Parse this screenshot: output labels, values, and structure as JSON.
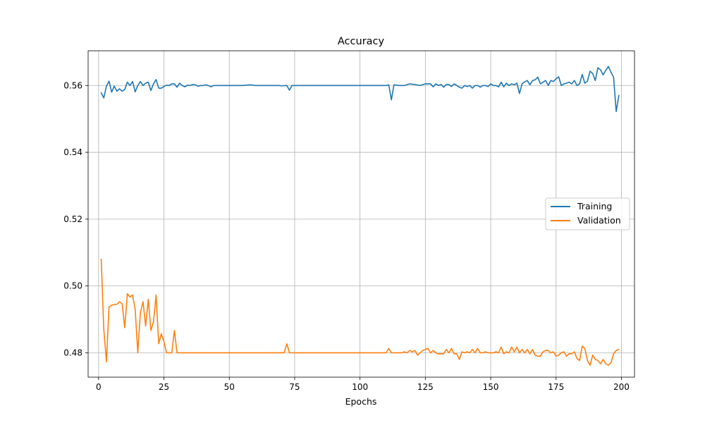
{
  "chart_data": {
    "type": "line",
    "title": "Accuracy",
    "xlabel": "Epochs",
    "ylabel": "",
    "xlim": [
      -4,
      205
    ],
    "ylim": [
      0.4727,
      0.5704
    ],
    "xticks": [
      0,
      25,
      50,
      75,
      100,
      125,
      150,
      175,
      200
    ],
    "yticks": [
      0.48,
      0.5,
      0.52,
      0.54,
      0.56
    ],
    "ytick_labels": [
      "0.48",
      "0.50",
      "0.52",
      "0.54",
      "0.56"
    ],
    "grid": true,
    "legend_position": "center-right",
    "series": [
      {
        "name": "Training",
        "color": "#1f77b4",
        "points": [
          [
            1,
            0.5578
          ],
          [
            2,
            0.5563
          ],
          [
            3,
            0.5598
          ],
          [
            4,
            0.5613
          ],
          [
            5,
            0.558
          ],
          [
            6,
            0.5598
          ],
          [
            7,
            0.5583
          ],
          [
            8,
            0.559
          ],
          [
            9,
            0.5583
          ],
          [
            10,
            0.5588
          ],
          [
            11,
            0.561
          ],
          [
            12,
            0.56
          ],
          [
            13,
            0.5612
          ],
          [
            14,
            0.5581
          ],
          [
            15,
            0.56
          ],
          [
            16,
            0.5612
          ],
          [
            17,
            0.56
          ],
          [
            18,
            0.5607
          ],
          [
            19,
            0.561
          ],
          [
            20,
            0.5585
          ],
          [
            21,
            0.5605
          ],
          [
            22,
            0.5618
          ],
          [
            23,
            0.5592
          ],
          [
            24,
            0.5592
          ],
          [
            25,
            0.5597
          ],
          [
            26,
            0.5601
          ],
          [
            27,
            0.56
          ],
          [
            28,
            0.5605
          ],
          [
            29,
            0.5605
          ],
          [
            30,
            0.5595
          ],
          [
            31,
            0.5607
          ],
          [
            32,
            0.56
          ],
          [
            33,
            0.5596
          ],
          [
            34,
            0.5601
          ],
          [
            35,
            0.56
          ],
          [
            36,
            0.5603
          ],
          [
            37,
            0.5602
          ],
          [
            38,
            0.5598
          ],
          [
            39,
            0.56
          ],
          [
            40,
            0.56
          ],
          [
            41,
            0.5602
          ],
          [
            42,
            0.56
          ],
          [
            43,
            0.5596
          ],
          [
            44,
            0.56
          ],
          [
            45,
            0.56
          ],
          [
            50,
            0.56
          ],
          [
            55,
            0.56
          ],
          [
            58,
            0.5602
          ],
          [
            60,
            0.56
          ],
          [
            65,
            0.56
          ],
          [
            69,
            0.56
          ],
          [
            70,
            0.5599
          ],
          [
            72,
            0.56
          ],
          [
            73,
            0.5586
          ],
          [
            74,
            0.56
          ],
          [
            80,
            0.56
          ],
          [
            90,
            0.56
          ],
          [
            100,
            0.56
          ],
          [
            105,
            0.56
          ],
          [
            110,
            0.56
          ],
          [
            111,
            0.5602
          ],
          [
            112,
            0.5557
          ],
          [
            113,
            0.5602
          ],
          [
            115,
            0.56
          ],
          [
            117,
            0.56
          ],
          [
            119,
            0.5605
          ],
          [
            121,
            0.5603
          ],
          [
            123,
            0.56
          ],
          [
            125,
            0.5605
          ],
          [
            127,
            0.5605
          ],
          [
            128,
            0.5596
          ],
          [
            129,
            0.5605
          ],
          [
            130,
            0.56
          ],
          [
            131,
            0.5603
          ],
          [
            132,
            0.5595
          ],
          [
            133,
            0.5603
          ],
          [
            134,
            0.5603
          ],
          [
            135,
            0.5597
          ],
          [
            136,
            0.5605
          ],
          [
            137,
            0.56
          ],
          [
            138,
            0.5595
          ],
          [
            139,
            0.5592
          ],
          [
            140,
            0.56
          ],
          [
            141,
            0.5597
          ],
          [
            142,
            0.56
          ],
          [
            143,
            0.5592
          ],
          [
            144,
            0.56
          ],
          [
            145,
            0.56
          ],
          [
            146,
            0.5595
          ],
          [
            147,
            0.56
          ],
          [
            148,
            0.56
          ],
          [
            149,
            0.5597
          ],
          [
            150,
            0.5605
          ],
          [
            151,
            0.56
          ],
          [
            152,
            0.56
          ],
          [
            153,
            0.5596
          ],
          [
            154,
            0.561
          ],
          [
            155,
            0.5596
          ],
          [
            156,
            0.5607
          ],
          [
            157,
            0.56
          ],
          [
            158,
            0.5605
          ],
          [
            159,
            0.5602
          ],
          [
            160,
            0.5607
          ],
          [
            161,
            0.5576
          ],
          [
            162,
            0.5605
          ],
          [
            163,
            0.5611
          ],
          [
            164,
            0.5615
          ],
          [
            165,
            0.5602
          ],
          [
            166,
            0.5615
          ],
          [
            167,
            0.5617
          ],
          [
            168,
            0.5625
          ],
          [
            169,
            0.5605
          ],
          [
            170,
            0.561
          ],
          [
            171,
            0.5615
          ],
          [
            172,
            0.56
          ],
          [
            173,
            0.5615
          ],
          [
            174,
            0.5612
          ],
          [
            175,
            0.562
          ],
          [
            176,
            0.5626
          ],
          [
            177,
            0.56
          ],
          [
            178,
            0.5605
          ],
          [
            179,
            0.5607
          ],
          [
            180,
            0.561
          ],
          [
            181,
            0.5605
          ],
          [
            182,
            0.5615
          ],
          [
            183,
            0.56
          ],
          [
            184,
            0.5605
          ],
          [
            185,
            0.5633
          ],
          [
            186,
            0.5607
          ],
          [
            187,
            0.5613
          ],
          [
            188,
            0.5643
          ],
          [
            189,
            0.5636
          ],
          [
            190,
            0.5615
          ],
          [
            191,
            0.5653
          ],
          [
            192,
            0.5647
          ],
          [
            193,
            0.5632
          ],
          [
            194,
            0.5645
          ],
          [
            195,
            0.5657
          ],
          [
            196,
            0.564
          ],
          [
            197,
            0.5625
          ],
          [
            198,
            0.5522
          ],
          [
            199,
            0.557
          ]
        ]
      },
      {
        "name": "Validation",
        "color": "#ff7f0e",
        "points": [
          [
            1,
            0.508
          ],
          [
            2,
            0.487
          ],
          [
            3,
            0.4773
          ],
          [
            4,
            0.4937
          ],
          [
            5,
            0.4942
          ],
          [
            6,
            0.4945
          ],
          [
            7,
            0.4945
          ],
          [
            8,
            0.4953
          ],
          [
            9,
            0.4947
          ],
          [
            10,
            0.4875
          ],
          [
            11,
            0.4977
          ],
          [
            12,
            0.4967
          ],
          [
            13,
            0.4973
          ],
          [
            14,
            0.493
          ],
          [
            15,
            0.48
          ],
          [
            16,
            0.492
          ],
          [
            17,
            0.4953
          ],
          [
            18,
            0.488
          ],
          [
            19,
            0.496
          ],
          [
            20,
            0.4867
          ],
          [
            21,
            0.4893
          ],
          [
            22,
            0.4973
          ],
          [
            23,
            0.4827
          ],
          [
            24,
            0.4857
          ],
          [
            25,
            0.4833
          ],
          [
            26,
            0.48
          ],
          [
            27,
            0.48
          ],
          [
            28,
            0.48
          ],
          [
            29,
            0.4867
          ],
          [
            30,
            0.48
          ],
          [
            35,
            0.48
          ],
          [
            40,
            0.48
          ],
          [
            50,
            0.48
          ],
          [
            60,
            0.48
          ],
          [
            70,
            0.48
          ],
          [
            71,
            0.48
          ],
          [
            72,
            0.4827
          ],
          [
            73,
            0.48
          ],
          [
            80,
            0.48
          ],
          [
            90,
            0.48
          ],
          [
            100,
            0.48
          ],
          [
            110,
            0.48
          ],
          [
            111,
            0.4813
          ],
          [
            112,
            0.48
          ],
          [
            114,
            0.48
          ],
          [
            116,
            0.48
          ],
          [
            117,
            0.4803
          ],
          [
            118,
            0.48
          ],
          [
            119,
            0.4807
          ],
          [
            120,
            0.4803
          ],
          [
            121,
            0.4807
          ],
          [
            122,
            0.4793
          ],
          [
            123,
            0.48
          ],
          [
            124,
            0.4807
          ],
          [
            125,
            0.481
          ],
          [
            126,
            0.4813
          ],
          [
            127,
            0.48
          ],
          [
            128,
            0.4807
          ],
          [
            129,
            0.48
          ],
          [
            130,
            0.4797
          ],
          [
            131,
            0.4797
          ],
          [
            132,
            0.4797
          ],
          [
            133,
            0.481
          ],
          [
            134,
            0.48
          ],
          [
            135,
            0.4813
          ],
          [
            136,
            0.4797
          ],
          [
            137,
            0.4797
          ],
          [
            138,
            0.478
          ],
          [
            139,
            0.4803
          ],
          [
            140,
            0.48
          ],
          [
            141,
            0.4803
          ],
          [
            142,
            0.48
          ],
          [
            143,
            0.481
          ],
          [
            144,
            0.48
          ],
          [
            145,
            0.4813
          ],
          [
            146,
            0.48
          ],
          [
            147,
            0.48
          ],
          [
            148,
            0.4803
          ],
          [
            149,
            0.48
          ],
          [
            150,
            0.48
          ],
          [
            151,
            0.48
          ],
          [
            152,
            0.4803
          ],
          [
            153,
            0.48
          ],
          [
            154,
            0.4817
          ],
          [
            155,
            0.4797
          ],
          [
            156,
            0.4803
          ],
          [
            157,
            0.48
          ],
          [
            158,
            0.4817
          ],
          [
            159,
            0.4803
          ],
          [
            160,
            0.4817
          ],
          [
            161,
            0.48
          ],
          [
            162,
            0.481
          ],
          [
            163,
            0.48
          ],
          [
            164,
            0.481
          ],
          [
            165,
            0.4797
          ],
          [
            166,
            0.481
          ],
          [
            167,
            0.4793
          ],
          [
            168,
            0.479
          ],
          [
            169,
            0.479
          ],
          [
            170,
            0.4803
          ],
          [
            171,
            0.4807
          ],
          [
            172,
            0.4807
          ],
          [
            173,
            0.48
          ],
          [
            174,
            0.4803
          ],
          [
            175,
            0.479
          ],
          [
            176,
            0.4793
          ],
          [
            177,
            0.48
          ],
          [
            178,
            0.4803
          ],
          [
            179,
            0.479
          ],
          [
            180,
            0.4797
          ],
          [
            181,
            0.4797
          ],
          [
            182,
            0.4803
          ],
          [
            183,
            0.4783
          ],
          [
            184,
            0.4777
          ],
          [
            185,
            0.482
          ],
          [
            186,
            0.4813
          ],
          [
            187,
            0.4777
          ],
          [
            188,
            0.4763
          ],
          [
            189,
            0.4793
          ],
          [
            190,
            0.478
          ],
          [
            191,
            0.4777
          ],
          [
            192,
            0.4767
          ],
          [
            193,
            0.478
          ],
          [
            194,
            0.4767
          ],
          [
            195,
            0.4763
          ],
          [
            196,
            0.477
          ],
          [
            197,
            0.4797
          ],
          [
            198,
            0.4807
          ],
          [
            199,
            0.481
          ]
        ]
      }
    ]
  }
}
